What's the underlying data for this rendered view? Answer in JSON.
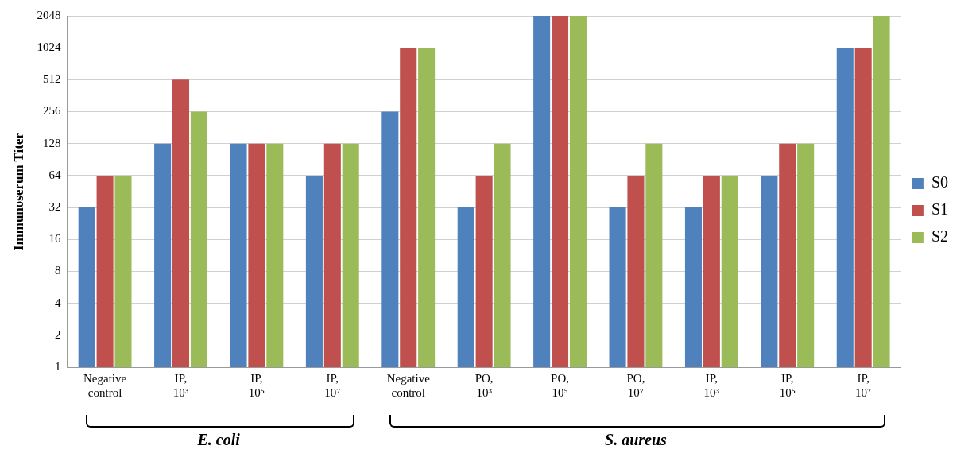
{
  "chart_data": {
    "type": "bar",
    "ylabel": "Immunoserum Titer",
    "categories": [
      "Negative control",
      "IP, 10³",
      "IP, 10⁵",
      "IP, 10⁷",
      "Negative control",
      "PO, 10³",
      "PO, 10⁵",
      "PO, 10⁷",
      "IP, 10³",
      "IP, 10⁵",
      "IP, 10⁷"
    ],
    "series": [
      {
        "name": "S0",
        "color": "#4f81bd",
        "values": [
          32,
          128,
          128,
          64,
          256,
          32,
          2048,
          32,
          32,
          64,
          1024
        ]
      },
      {
        "name": "S1",
        "color": "#c0504d",
        "values": [
          64,
          512,
          128,
          128,
          1024,
          64,
          2048,
          64,
          64,
          128,
          1024
        ]
      },
      {
        "name": "S2",
        "color": "#9bbb59",
        "values": [
          64,
          256,
          128,
          128,
          1024,
          128,
          2048,
          128,
          64,
          128,
          2048
        ]
      }
    ],
    "log": "y",
    "ylim": [
      1,
      2048
    ],
    "yticks": [
      1,
      2,
      4,
      8,
      16,
      32,
      64,
      128,
      256,
      512,
      1024,
      2048
    ],
    "grid": "y",
    "legend": "right",
    "annotations": [
      "E. coli",
      "S. aureus"
    ]
  }
}
